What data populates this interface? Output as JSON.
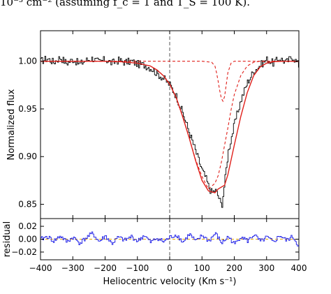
{
  "caption_fragment": "10⁻³ cm⁻² (assuming f_c = 1 and T_S = 100 K).",
  "colors": {
    "data": "#000000",
    "model": "#e0201b",
    "residual": "#1a1ae6",
    "zero_line": "#555555",
    "residual_zero": "#e8a800"
  },
  "chart_data": [
    {
      "panel": "top",
      "type": "line",
      "ylabel": "Normalized flux",
      "xlim": [
        -400,
        400
      ],
      "ylim": [
        0.835,
        1.032
      ],
      "yticks": [
        "0.85",
        "0.90",
        "0.95",
        "1.00"
      ],
      "vline_x": 0,
      "series": [
        {
          "role": "data",
          "style": "black step",
          "x": [
            -400,
            -380,
            -360,
            -340,
            -320,
            -300,
            -280,
            -260,
            -240,
            -220,
            -200,
            -180,
            -160,
            -140,
            -120,
            -100,
            -80,
            -60,
            -40,
            -20,
            0,
            20,
            40,
            60,
            80,
            100,
            110,
            120,
            130,
            140,
            150,
            160,
            170,
            180,
            200,
            220,
            240,
            260,
            280,
            300,
            320,
            340,
            360,
            380,
            400
          ],
          "y": [
            1.0,
            1.003,
            0.999,
            1.004,
            0.998,
            1.002,
            0.997,
            1.001,
            1.003,
            0.999,
            1.002,
            0.998,
            1.001,
            0.999,
            1.0,
            0.997,
            0.996,
            0.993,
            0.987,
            0.982,
            0.975,
            0.963,
            0.945,
            0.925,
            0.905,
            0.885,
            0.878,
            0.868,
            0.862,
            0.865,
            0.858,
            0.848,
            0.875,
            0.905,
            0.935,
            0.96,
            0.978,
            0.99,
            0.996,
            1.002,
            0.998,
            1.003,
            0.999,
            1.005,
            0.995
          ]
        },
        {
          "role": "model",
          "style": "red solid",
          "x": [
            -400,
            -300,
            -200,
            -150,
            -100,
            -60,
            -40,
            -20,
            0,
            20,
            40,
            60,
            80,
            100,
            120,
            140,
            150,
            160,
            170,
            180,
            200,
            220,
            240,
            260,
            280,
            300,
            320,
            350,
            400
          ],
          "y": [
            1.0,
            1.0,
            1.0,
            0.9995,
            0.998,
            0.995,
            0.991,
            0.985,
            0.976,
            0.962,
            0.942,
            0.92,
            0.896,
            0.875,
            0.864,
            0.862,
            0.866,
            0.868,
            0.87,
            0.881,
            0.912,
            0.942,
            0.967,
            0.985,
            0.994,
            0.998,
            0.9995,
            1.0,
            1.0
          ]
        },
        {
          "role": "component-broad",
          "style": "red dashed",
          "x": [
            -400,
            -300,
            -200,
            -150,
            -100,
            -60,
            -40,
            -20,
            0,
            20,
            40,
            60,
            80,
            100,
            120,
            140,
            150,
            160,
            170,
            180,
            190,
            200,
            220,
            240,
            260,
            280,
            300,
            350,
            400
          ],
          "y": [
            1.0,
            1.0,
            1.0,
            0.9995,
            0.998,
            0.995,
            0.991,
            0.985,
            0.976,
            0.962,
            0.942,
            0.92,
            0.897,
            0.879,
            0.866,
            0.872,
            0.88,
            0.894,
            0.912,
            0.93,
            0.949,
            0.965,
            0.985,
            0.995,
            0.999,
            1.0,
            1.0,
            1.0,
            1.0
          ]
        },
        {
          "role": "component-narrow",
          "style": "red dashed",
          "x": [
            -400,
            100,
            130,
            140,
            145,
            150,
            155,
            160,
            165,
            170,
            175,
            180,
            190,
            200,
            230,
            400
          ],
          "y": [
            1.0,
            1.0,
            0.999,
            0.995,
            0.988,
            0.979,
            0.969,
            0.961,
            0.958,
            0.963,
            0.975,
            0.988,
            0.998,
            1.0,
            1.0,
            1.0
          ]
        }
      ]
    },
    {
      "panel": "bottom",
      "type": "line",
      "xlabel": "Heliocentric velocity (Km s⁻¹)",
      "ylabel": "residual",
      "xlim": [
        -400,
        400
      ],
      "ylim": [
        -0.032,
        0.032
      ],
      "xticks": [
        "−400",
        "−300",
        "−200",
        "−100",
        "0",
        "100",
        "200",
        "300",
        "400"
      ],
      "yticks": [
        "−0.02",
        "0.00",
        "0.02"
      ],
      "hline_y": 0,
      "vline_x": 0,
      "series": [
        {
          "role": "residual",
          "style": "blue step",
          "x": [
            -400,
            -380,
            -360,
            -340,
            -320,
            -300,
            -280,
            -260,
            -240,
            -220,
            -200,
            -180,
            -160,
            -140,
            -120,
            -100,
            -80,
            -60,
            -40,
            -20,
            0,
            20,
            40,
            60,
            80,
            100,
            120,
            140,
            160,
            180,
            200,
            220,
            240,
            260,
            280,
            300,
            320,
            340,
            360,
            380,
            400
          ],
          "y": [
            0.0,
            0.004,
            -0.003,
            0.005,
            -0.004,
            0.003,
            -0.006,
            0.002,
            0.009,
            -0.004,
            0.005,
            -0.007,
            0.003,
            -0.002,
            0.004,
            -0.003,
            0.006,
            -0.005,
            0.002,
            -0.004,
            0.003,
            0.007,
            -0.005,
            0.008,
            -0.004,
            0.006,
            -0.003,
            0.009,
            -0.006,
            0.004,
            -0.008,
            0.005,
            -0.003,
            0.007,
            -0.004,
            0.003,
            -0.005,
            0.006,
            -0.002,
            0.004,
            -0.012
          ]
        }
      ]
    }
  ]
}
